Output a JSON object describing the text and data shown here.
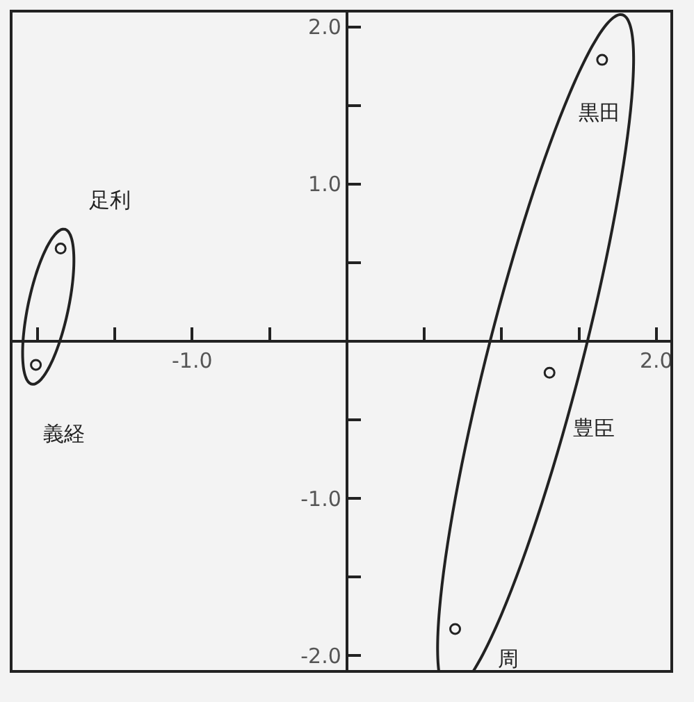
{
  "chart_data": {
    "type": "scatter",
    "series": [
      {
        "color": "#222222",
        "x": [
          -2.01,
          -1.85
        ],
        "values": [
          -0.15,
          0.59
        ]
      },
      {
        "color": "#222222",
        "x": [
          1.65,
          1.31,
          0.7
        ],
        "values": [
          1.79,
          -0.2,
          -1.83
        ]
      }
    ],
    "annotations": [
      {
        "text": "義経",
        "x": -2.01,
        "y": -0.15
      },
      {
        "text": "足利",
        "x": -1.85,
        "y": 0.59
      },
      {
        "text": "黒田",
        "x": 1.65,
        "y": 1.79
      },
      {
        "text": "豊臣",
        "x": 1.31,
        "y": -0.2
      },
      {
        "text": "周",
        "x": 0.7,
        "y": -1.83
      }
    ],
    "xlim": [
      -2.17,
      2.1
    ],
    "ylim": [
      -2.1,
      2.1
    ],
    "xticks": [
      {
        "value": -2.0,
        "label": null
      },
      {
        "value": -1.5,
        "label": null
      },
      {
        "value": -1.0,
        "label": "-1.0"
      },
      {
        "value": -0.5,
        "label": null
      },
      {
        "value": 0.5,
        "label": null
      },
      {
        "value": 1.0,
        "label": null
      },
      {
        "value": 1.5,
        "label": null
      },
      {
        "value": 2.0,
        "label": "2.0"
      }
    ],
    "yticks": [
      {
        "value": -2.0,
        "label": "-2.0"
      },
      {
        "value": -1.5,
        "label": null
      },
      {
        "value": -1.0,
        "label": "-1.0"
      },
      {
        "value": -0.5,
        "label": null
      },
      {
        "value": 0.5,
        "label": null
      },
      {
        "value": 1.0,
        "label": "1.0"
      },
      {
        "value": 1.5,
        "label": null
      },
      {
        "value": 2.0,
        "label": "2.0"
      }
    ],
    "marker": "circle",
    "grid": false
  }
}
